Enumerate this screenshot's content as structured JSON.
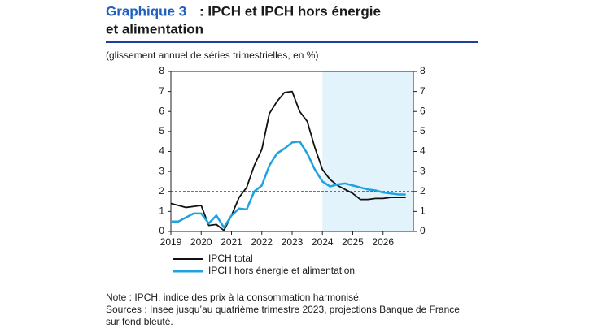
{
  "chart_data": {
    "type": "line",
    "title_prefix": "Graphique 3",
    "title": ": IPCH et IPCH hors énergie",
    "title_line2": "et alimentation",
    "subtitle": "(glissement annuel de séries trimestrielles, en %)",
    "x": [
      2019.0,
      2019.25,
      2019.5,
      2019.75,
      2020.0,
      2020.25,
      2020.5,
      2020.75,
      2021.0,
      2021.25,
      2021.5,
      2021.75,
      2022.0,
      2022.25,
      2022.5,
      2022.75,
      2023.0,
      2023.25,
      2023.5,
      2023.75,
      2024.0,
      2024.25,
      2024.5,
      2024.75,
      2025.0,
      2025.25,
      2025.5,
      2025.75,
      2026.0,
      2026.25,
      2026.5,
      2026.75
    ],
    "series": [
      {
        "name": "IPCH total",
        "color": "#111111",
        "values": [
          1.4,
          1.3,
          1.2,
          1.25,
          1.3,
          0.3,
          0.35,
          0.05,
          0.8,
          1.7,
          2.2,
          3.3,
          4.1,
          5.9,
          6.5,
          6.95,
          7.0,
          6.0,
          5.5,
          4.2,
          3.1,
          2.6,
          2.3,
          2.1,
          1.9,
          1.6,
          1.6,
          1.65,
          1.65,
          1.7,
          1.7,
          1.7
        ]
      },
      {
        "name": "IPCH hors énergie et alimentation",
        "color": "#1fa3e0",
        "values": [
          0.5,
          0.5,
          0.7,
          0.9,
          0.9,
          0.4,
          0.8,
          0.2,
          0.8,
          1.15,
          1.1,
          2.0,
          2.3,
          3.3,
          3.9,
          4.15,
          4.45,
          4.5,
          3.9,
          3.1,
          2.5,
          2.25,
          2.35,
          2.4,
          2.3,
          2.2,
          2.1,
          2.05,
          1.95,
          1.9,
          1.85,
          1.85
        ]
      }
    ],
    "xlim": [
      2019,
      2027
    ],
    "xticks": [
      2019,
      2020,
      2021,
      2022,
      2023,
      2024,
      2025,
      2026
    ],
    "ylim": [
      0,
      8
    ],
    "yticks": [
      0,
      1,
      2,
      3,
      4,
      5,
      6,
      7,
      8
    ],
    "y2lim": [
      0,
      8
    ],
    "y2ticks": [
      0,
      1,
      2,
      3,
      4,
      5,
      6,
      7,
      8
    ],
    "shaded_range": [
      2024,
      2027
    ],
    "shaded_color": "#e3f3fc",
    "reference_line": 2,
    "note": "Note : IPCH, indice des prix à la consommation harmonisé.",
    "sources": "Sources : Insee jusqu’au quatrième trimestre 2023, projections Banque de France",
    "sources_line2": "sur fond bleuté."
  }
}
